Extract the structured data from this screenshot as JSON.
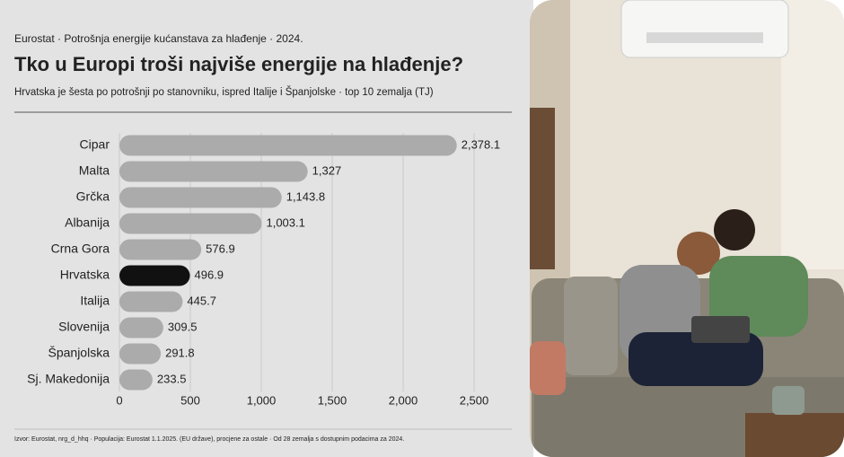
{
  "chart_data": {
    "type": "bar",
    "orientation": "horizontal",
    "kicker": "Eurostat · Potrošnja energije kućanstava za hlađenje · 2024.",
    "title": "Tko u Europi troši najviše energije na hlađenje?",
    "subtitle": "Hrvatska je šesta po potrošnji po stanovniku, ispred Italije i Španjolske · top 10 zemalja (TJ)",
    "note": "Izvor: Eurostat, nrg_d_hhq · Populacija: Eurostat 1.1.2025. (EU države), procjene za ostale · Od 28 zemalja s dostupnim podacima za 2024.",
    "categories": [
      "Cipar",
      "Malta",
      "Grčka",
      "Albanija",
      "Crna Gora",
      "Hrvatska",
      "Italija",
      "Slovenija",
      "Španjolska",
      "Sj. Makedonija"
    ],
    "values": [
      2378.1,
      1327,
      1143.8,
      1003.1,
      576.9,
      496.9,
      445.7,
      309.5,
      291.8,
      233.5
    ],
    "value_labels": [
      "2,378.1",
      "1,327",
      "1,143.8",
      "1,003.1",
      "576.9",
      "496.9",
      "445.7",
      "309.5",
      "291.8",
      "233.5"
    ],
    "colors": [
      "#ababab",
      "#ababab",
      "#ababab",
      "#ababab",
      "#ababab",
      "#111111",
      "#ababab",
      "#ababab",
      "#ababab",
      "#ababab"
    ],
    "xlim": [
      0,
      2500
    ],
    "xticks": [
      0,
      500,
      {
        "value": 1000,
        "label": "1,000"
      },
      {
        "value": 1500,
        "label": "1,500"
      },
      {
        "value": 2000,
        "label": "2,000"
      },
      {
        "value": 2500,
        "label": "2,500"
      }
    ],
    "grid": true
  }
}
